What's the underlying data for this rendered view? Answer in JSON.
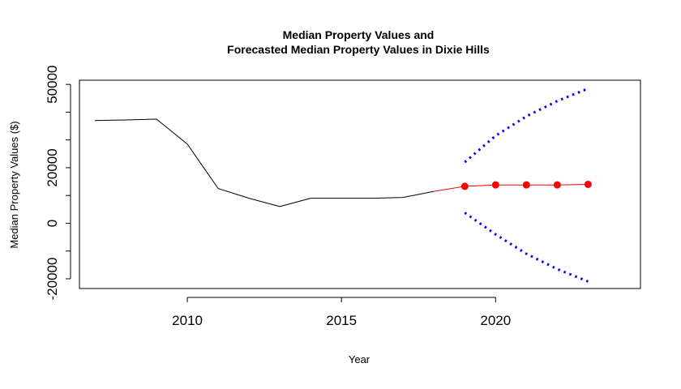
{
  "chart_data": {
    "type": "line",
    "title_line1": "Median Property Values and",
    "title_line2": "Forecasted Median Property Values in Dixie Hills",
    "xlabel": "Year",
    "ylabel": "Median Property Values ($)",
    "xlim": [
      2006.5,
      2024.7
    ],
    "ylim": [
      -23500,
      51500
    ],
    "x_ticks": [
      2010,
      2015,
      2020
    ],
    "y_ticks": [
      -20000,
      0,
      20000,
      50000
    ],
    "y_tick_marks": [
      -20000,
      -10000,
      0,
      10000,
      20000,
      30000,
      40000,
      50000
    ],
    "series": [
      {
        "style": "solid",
        "color": "#000000",
        "x": [
          2007,
          2008,
          2009,
          2010,
          2011,
          2012,
          2013,
          2014,
          2015,
          2016,
          2017,
          2018
        ],
        "y": [
          37000,
          37200,
          37500,
          28500,
          12500,
          9000,
          6000,
          9000,
          9000,
          9000,
          9300,
          11500
        ]
      },
      {
        "style": "solid",
        "color": "#ff0000",
        "markers": true,
        "x": [
          2018,
          2019,
          2020,
          2021,
          2022,
          2023
        ],
        "y": [
          11500,
          13300,
          13800,
          13800,
          13800,
          14000
        ]
      },
      {
        "style": "dotted",
        "color": "#0000ff",
        "x": [
          2019,
          2020,
          2021,
          2022,
          2023
        ],
        "y": [
          22000,
          31500,
          38500,
          44000,
          48500
        ]
      },
      {
        "style": "dotted",
        "color": "#0000ff",
        "x": [
          2019,
          2020,
          2021,
          2022,
          2023
        ],
        "y": [
          3800,
          -4000,
          -11000,
          -16500,
          -21000
        ]
      }
    ],
    "grid": false,
    "legend": "none"
  }
}
